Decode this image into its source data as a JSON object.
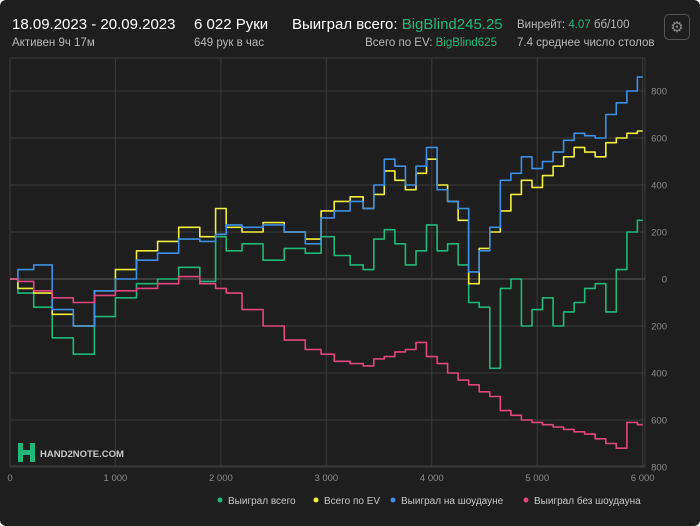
{
  "header": {
    "date_range": "18.09.2023 - 20.09.2023",
    "active_time": "Активен 9ч 17м",
    "hands": "6 022 Руки",
    "hands_per_hour": "649 рук в час",
    "won_total_label": "Выиграл всего:",
    "won_total_value": "BigBlind245.25",
    "ev_total_label": "Всего по EV:",
    "ev_total_value": "BigBlind625",
    "winrate_label": "Винрейт:",
    "winrate_value": "4.07",
    "winrate_unit": "бб/100",
    "avg_tables": "7.4 среднее число столов"
  },
  "watermark": {
    "text": "HAND2NOTE.COM"
  },
  "icons": {
    "settings": "gear-icon",
    "logo": "hand2note-logo-icon"
  },
  "colors": {
    "background": "#1e1e1e",
    "grid": "#3a3a3a",
    "zero_line": "#5a5a5a",
    "won_total": "#1fb878",
    "ev_total": "#f2ee3c",
    "won_showdown": "#3d8fe6",
    "won_no_showdown": "#e2467e",
    "accent_green": "#1fb878"
  },
  "chart_data": {
    "type": "line",
    "xlim": [
      0,
      6022
    ],
    "ylim": [
      -800,
      950
    ],
    "x_ticks": [
      0,
      1000,
      2000,
      3000,
      4000,
      5000,
      6000
    ],
    "x_tick_labels": [
      "0",
      "1 000",
      "2 000",
      "3 000",
      "4 000",
      "5 000",
      "6 000"
    ],
    "y_ticks": [
      800,
      600,
      400,
      200,
      0,
      -200,
      -400,
      -600,
      -800
    ],
    "y_tick_labels": [
      "800",
      "600",
      "400",
      "200",
      "0",
      "200",
      "400",
      "600",
      "800"
    ],
    "grid": true,
    "legend_position": "bottom-right",
    "x": [
      0,
      150,
      300,
      500,
      700,
      900,
      1100,
      1300,
      1500,
      1700,
      1900,
      2000,
      2100,
      2300,
      2500,
      2700,
      2900,
      3000,
      3150,
      3300,
      3400,
      3500,
      3600,
      3700,
      3800,
      3900,
      4000,
      4100,
      4200,
      4300,
      4400,
      4500,
      4600,
      4700,
      4800,
      4900,
      5000,
      5100,
      5200,
      5300,
      5400,
      5500,
      5600,
      5700,
      5800,
      5900,
      6000
    ],
    "series": [
      {
        "name": "Выиграл всего",
        "color": "#1fb878",
        "values": [
          0,
          -60,
          -120,
          -250,
          -320,
          -160,
          -80,
          -20,
          0,
          50,
          -10,
          180,
          120,
          150,
          80,
          130,
          110,
          180,
          100,
          60,
          40,
          170,
          210,
          150,
          60,
          120,
          230,
          120,
          150,
          60,
          -100,
          -120,
          -380,
          -40,
          0,
          -200,
          -130,
          -80,
          -200,
          -140,
          -100,
          -40,
          -20,
          -140,
          40,
          200,
          250
        ]
      },
      {
        "name": "Всего по EV",
        "color": "#f2ee3c",
        "values": [
          0,
          -40,
          -60,
          -150,
          -200,
          -50,
          40,
          120,
          160,
          220,
          180,
          300,
          220,
          200,
          240,
          200,
          170,
          290,
          330,
          350,
          300,
          360,
          460,
          420,
          380,
          450,
          510,
          400,
          330,
          250,
          -20,
          130,
          200,
          290,
          360,
          420,
          390,
          440,
          480,
          520,
          560,
          540,
          520,
          580,
          600,
          620,
          630
        ]
      },
      {
        "name": "Выиграл на шоудауне",
        "color": "#3d8fe6",
        "values": [
          0,
          40,
          60,
          -130,
          -200,
          -50,
          0,
          80,
          110,
          170,
          160,
          190,
          230,
          220,
          230,
          200,
          150,
          260,
          290,
          330,
          300,
          400,
          510,
          480,
          400,
          480,
          560,
          380,
          330,
          300,
          30,
          120,
          220,
          420,
          450,
          520,
          470,
          500,
          540,
          590,
          620,
          610,
          600,
          700,
          750,
          800,
          860
        ]
      },
      {
        "name": "Выиграл без шоудауна",
        "color": "#e2467e",
        "values": [
          0,
          -10,
          -50,
          -80,
          -100,
          -70,
          -50,
          -40,
          -20,
          10,
          -20,
          -40,
          -60,
          -130,
          -200,
          -260,
          -300,
          -320,
          -350,
          -360,
          -370,
          -340,
          -330,
          -310,
          -300,
          -270,
          -330,
          -360,
          -400,
          -430,
          -450,
          -480,
          -500,
          -560,
          -580,
          -600,
          -610,
          -620,
          -630,
          -640,
          -650,
          -660,
          -680,
          -700,
          -720,
          -610,
          -620
        ]
      }
    ]
  }
}
